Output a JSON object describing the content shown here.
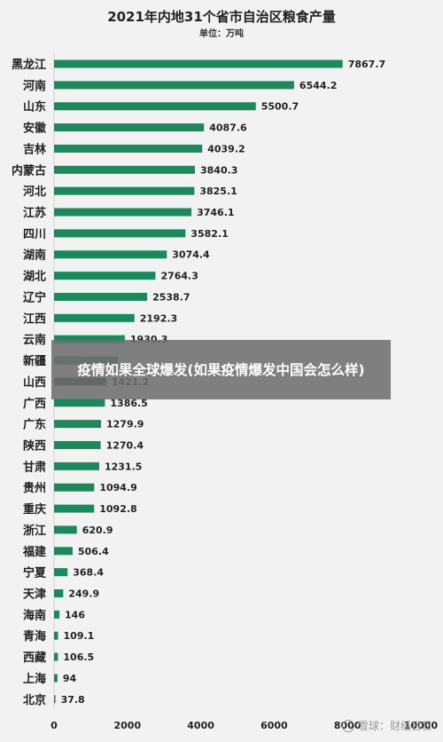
{
  "chart_data": {
    "type": "bar",
    "orientation": "horizontal",
    "title": "2021年内地31个省市自治区粮食产量",
    "subtitle": "单位：万吨",
    "xlim": [
      0,
      10000
    ],
    "xticks": [
      0,
      2000,
      4000,
      6000,
      8000,
      10000
    ],
    "grid": false,
    "bar_color": "#1a8a5c",
    "categories": [
      "黑龙江",
      "河南",
      "山东",
      "安徽",
      "吉林",
      "内蒙古",
      "河北",
      "江苏",
      "四川",
      "湖南",
      "湖北",
      "辽宁",
      "江西",
      "云南",
      "新疆",
      "山西",
      "广西",
      "广东",
      "陕西",
      "甘肃",
      "贵州",
      "重庆",
      "浙江",
      "福建",
      "宁夏",
      "天津",
      "海南",
      "青海",
      "西藏",
      "上海",
      "北京"
    ],
    "values": [
      7867.7,
      6544.2,
      5500.7,
      4087.6,
      4039.2,
      3840.3,
      3825.1,
      3746.1,
      3582.1,
      3074.4,
      2764.3,
      2538.7,
      2192.3,
      1930.3,
      1735.8,
      1421.2,
      1386.5,
      1279.9,
      1270.4,
      1231.5,
      1094.9,
      1092.8,
      620.9,
      506.4,
      368.4,
      249.9,
      146,
      109.1,
      106.5,
      94,
      37.8
    ],
    "data_labels": [
      "7867.7",
      "6544.2",
      "5500.7",
      "4087.6",
      "4039.2",
      "3840.3",
      "3825.1",
      "3746.1",
      "3582.1",
      "3074.4",
      "2764.3",
      "2538.7",
      "2192.3",
      "1930.3",
      "",
      "1421.2",
      "1386.5",
      "1279.9",
      "1270.4",
      "1231.5",
      "1094.9",
      "1092.8",
      "620.9",
      "506.4",
      "368.4",
      "249.9",
      "146",
      "109.1",
      "106.5",
      "94",
      "37.8"
    ]
  },
  "overlay": {
    "text": "疫情如果全球爆发(如果疫情爆发中国会怎么样)"
  },
  "watermark": {
    "text": "雪球：财经日日"
  }
}
